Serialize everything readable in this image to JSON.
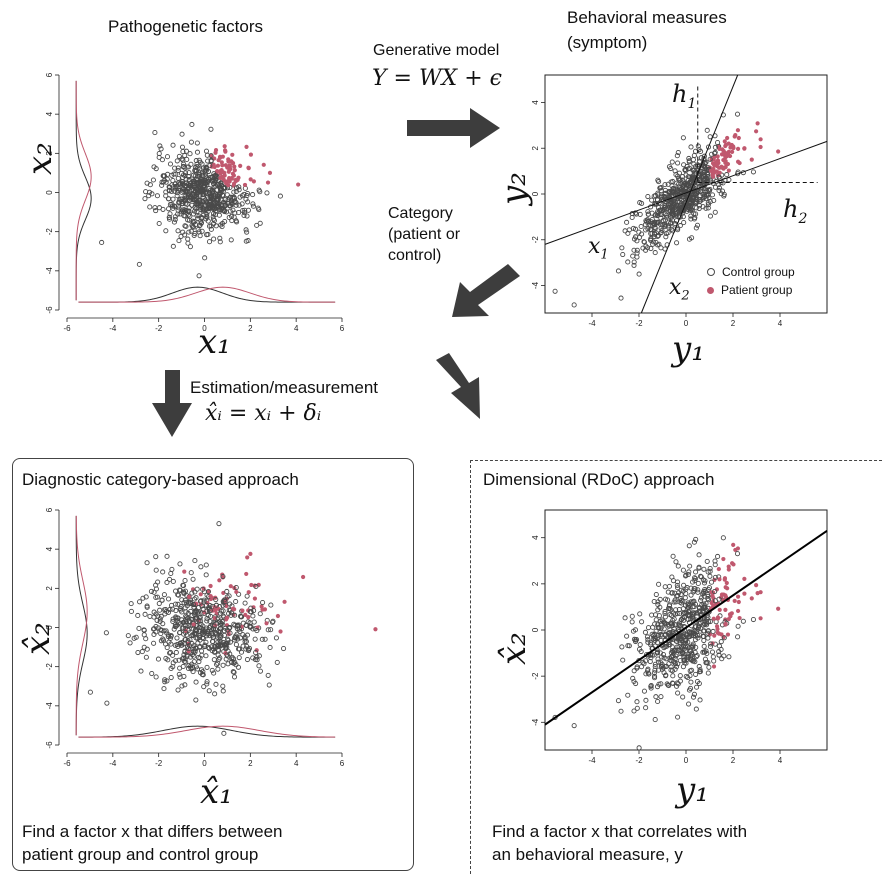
{
  "colors": {
    "control": "#4a4a4a",
    "patient": "#c0586e",
    "arrow": "#3d3d3d"
  },
  "titles": {
    "pathogenetic": "Pathogenetic factors",
    "behavioral_line1": "Behavioral measures",
    "behavioral_line2": "(symptom)",
    "generative_model": "Generative model",
    "equation": "Y = WX + ϵ",
    "category_line1": "Category",
    "category_line2": "(patient or",
    "category_line3": "control)",
    "estimation": "Estimation/measurement",
    "estimation_equation": "x̂ᵢ = xᵢ + δᵢ",
    "diagnostic_header": "Diagnostic category-based approach",
    "dimensional_header": "Dimensional (RDoC) approach",
    "diagnostic_caption_1": "Find a factor x that differs between",
    "diagnostic_caption_2": "patient group and control group",
    "dimensional_caption_1": "Find a factor x that correlates with",
    "dimensional_caption_2": "an behavioral measure, y"
  },
  "legend": {
    "control": "Control group",
    "patient": "Patient group"
  },
  "chart_data": [
    {
      "type": "scatter",
      "panel": "pathogenetic-factors",
      "xlabel": "x₁",
      "ylabel": "x₂",
      "xlim": [
        -6,
        6
      ],
      "ylim": [
        -6,
        6
      ],
      "xticks": [
        -6,
        -4,
        -2,
        0,
        2,
        4,
        6
      ],
      "yticks": [
        -6,
        -4,
        -2,
        0,
        2,
        4,
        6
      ],
      "series": [
        {
          "name": "Control group",
          "approx_n": 560,
          "center": [
            -0.3,
            -0.3
          ]
        },
        {
          "name": "Patient group",
          "approx_n": 130,
          "center": [
            1.0,
            1.0
          ]
        }
      ],
      "marginal_densities": true
    },
    {
      "type": "scatter",
      "panel": "behavioral-measures",
      "xlabel": "y₁",
      "ylabel": "y₂",
      "xlim": [
        -6,
        6
      ],
      "ylim": [
        -5,
        5
      ],
      "xticks": [
        -4,
        -2,
        0,
        2,
        4
      ],
      "yticks": [
        -4,
        -2,
        0,
        2,
        4
      ],
      "axis_lines": [
        "h₁",
        "h₂",
        "x₁",
        "x₂"
      ],
      "series": [
        {
          "name": "Control group",
          "approx_n": 560
        },
        {
          "name": "Patient group",
          "approx_n": 130
        }
      ]
    },
    {
      "type": "scatter",
      "panel": "diagnostic-category",
      "xlabel": "x̂₁",
      "ylabel": "x̂₂",
      "xlim": [
        -6,
        6
      ],
      "ylim": [
        -6,
        6
      ],
      "xticks": [
        -6,
        -4,
        -2,
        0,
        2,
        4,
        6
      ],
      "yticks": [
        -6,
        -4,
        -2,
        0,
        2,
        4,
        6
      ],
      "series": [
        {
          "name": "Control group",
          "approx_n": 560
        },
        {
          "name": "Patient group",
          "approx_n": 130
        }
      ],
      "marginal_densities": true
    },
    {
      "type": "scatter",
      "panel": "dimensional-rdoc",
      "xlabel": "y₁",
      "ylabel": "x̂₂",
      "xlim": [
        -6,
        6
      ],
      "ylim": [
        -5,
        5
      ],
      "xticks": [
        -4,
        -2,
        0,
        2,
        4
      ],
      "yticks": [
        -4,
        -2,
        0,
        2,
        4
      ],
      "regression_line": true,
      "series": [
        {
          "name": "Control group",
          "approx_n": 560
        },
        {
          "name": "Patient group",
          "approx_n": 130
        }
      ]
    }
  ]
}
